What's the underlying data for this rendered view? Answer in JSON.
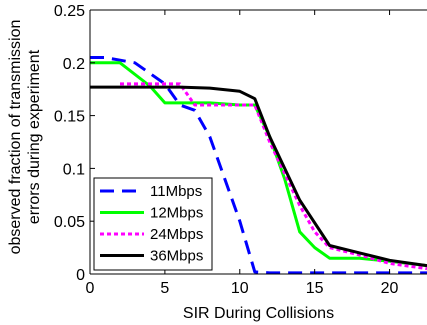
{
  "chart_data": {
    "type": "line",
    "title": "",
    "xlabel": "SIR During Collisions",
    "ylabel_lines": [
      "observed fraction of transmission",
      "errors during experiment"
    ],
    "xlim": [
      0,
      22.5
    ],
    "ylim": [
      0,
      0.25
    ],
    "xticks": [
      0,
      5,
      10,
      15,
      20
    ],
    "xtick_labels": [
      "0",
      "5",
      "10",
      "15",
      "20"
    ],
    "yticks": [
      0,
      0.05,
      0.1,
      0.15,
      0.2,
      0.25
    ],
    "ytick_labels": [
      "0",
      "0.05",
      "0.1",
      "0.15",
      "0.2",
      "0.25"
    ],
    "grid": false,
    "legend_position": "lower-left",
    "series": [
      {
        "name": "11Mbps",
        "color": "#0000ff",
        "style": "dashed",
        "x": [
          0,
          1,
          3,
          5,
          6,
          7,
          8,
          9,
          10,
          11,
          12,
          15,
          20,
          22.5
        ],
        "y": [
          0.205,
          0.205,
          0.2,
          0.18,
          0.16,
          0.155,
          0.13,
          0.09,
          0.05,
          0.002,
          0.001,
          0.001,
          0.001,
          0.001
        ]
      },
      {
        "name": "12Mbps",
        "color": "#00ff00",
        "style": "solid",
        "x": [
          0,
          1,
          2,
          4,
          5,
          6,
          8,
          10,
          11,
          12,
          13,
          14,
          15,
          16,
          18,
          20,
          22.5
        ],
        "y": [
          0.2,
          0.2,
          0.2,
          0.178,
          0.162,
          0.162,
          0.162,
          0.16,
          0.16,
          0.13,
          0.09,
          0.04,
          0.025,
          0.015,
          0.015,
          0.012,
          0.008
        ]
      },
      {
        "name": "24Mbps",
        "color": "#ff00ff",
        "style": "dotted",
        "x": [
          2,
          4,
          6,
          7,
          8,
          10,
          11,
          12,
          13,
          14,
          15,
          16,
          18,
          20,
          22.5
        ],
        "y": [
          0.18,
          0.18,
          0.18,
          0.16,
          0.16,
          0.16,
          0.16,
          0.125,
          0.095,
          0.065,
          0.04,
          0.025,
          0.018,
          0.01,
          0.005
        ]
      },
      {
        "name": "36Mbps",
        "color": "#000000",
        "style": "solid",
        "x": [
          0,
          2,
          4,
          6,
          8,
          10,
          11,
          12,
          13,
          14,
          16,
          18,
          20,
          22.5
        ],
        "y": [
          0.177,
          0.177,
          0.177,
          0.177,
          0.176,
          0.173,
          0.166,
          0.13,
          0.1,
          0.07,
          0.027,
          0.02,
          0.013,
          0.008
        ]
      }
    ]
  }
}
